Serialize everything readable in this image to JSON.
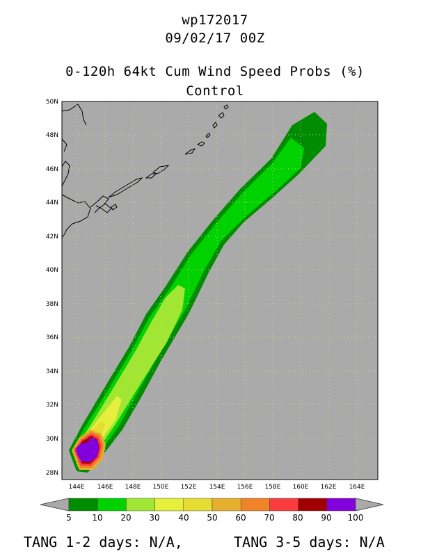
{
  "header": {
    "storm_id": "wp172017",
    "datetime": "09/02/17 00Z",
    "product": "0-120h 64kt Cum Wind Speed Probs (%)",
    "run": "Control"
  },
  "map": {
    "lat_labels": [
      "50N",
      "48N",
      "46N",
      "44N",
      "42N",
      "40N",
      "38N",
      "36N",
      "34N",
      "32N",
      "30N",
      "28N"
    ],
    "lon_labels": [
      "144E",
      "146E",
      "148E",
      "150E",
      "152E",
      "154E",
      "156E",
      "158E",
      "160E",
      "162E",
      "164E"
    ],
    "ocean_color": "#aaaaaa"
  },
  "colorbar": {
    "labels": [
      "5",
      "10",
      "20",
      "30",
      "40",
      "50",
      "60",
      "70",
      "80",
      "90",
      "100"
    ],
    "colors": [
      "#008c00",
      "#00d200",
      "#a0e632",
      "#e6f03c",
      "#e6dc32",
      "#e6af2d",
      "#f08228",
      "#fa3c3c",
      "#a00000",
      "#8200dc"
    ]
  },
  "footer": {
    "left": "TANG 1-2 days:  N/A,",
    "right": "TANG 3-5 days:  N/A"
  }
}
